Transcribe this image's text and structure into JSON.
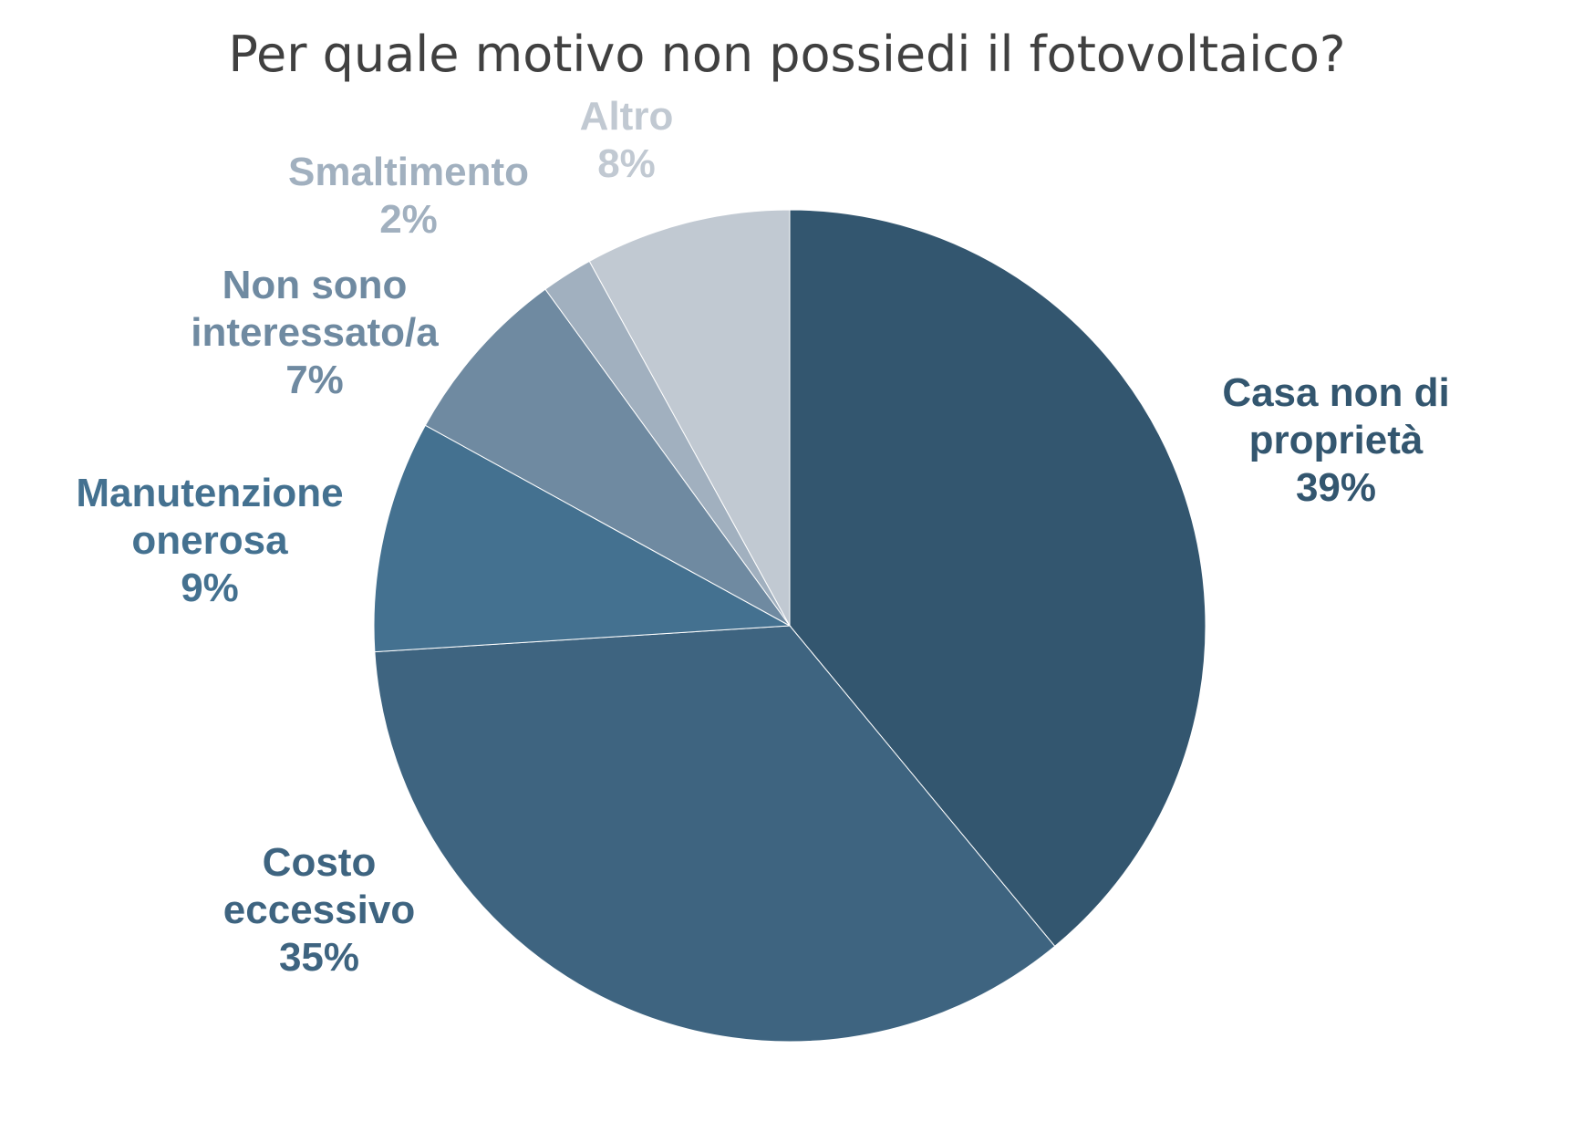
{
  "chart_data": {
    "type": "pie",
    "title": "Per quale motivo non possiedi il fotovoltaico?",
    "slices": [
      {
        "name": "Casa non di proprietà",
        "label_lines": [
          "Casa non di",
          "proprietà"
        ],
        "value": 39,
        "percent_label": "39%",
        "color": "#33566F",
        "label_color": "#33566F"
      },
      {
        "name": "Costo eccessivo",
        "label_lines": [
          "Costo",
          "eccessivo"
        ],
        "value": 35,
        "percent_label": "35%",
        "color": "#3E6480",
        "label_color": "#3E6480"
      },
      {
        "name": "Manutenzione onerosa",
        "label_lines": [
          "Manutenzione",
          "onerosa"
        ],
        "value": 9,
        "percent_label": "9%",
        "color": "#447190",
        "label_color": "#447190"
      },
      {
        "name": "Non sono interessato/a",
        "label_lines": [
          "Non sono",
          "interessato/a"
        ],
        "value": 7,
        "percent_label": "7%",
        "color": "#6F8AA1",
        "label_color": "#6F8AA1"
      },
      {
        "name": "Smaltimento",
        "label_lines": [
          "Smaltimento"
        ],
        "value": 2,
        "percent_label": "2%",
        "color": "#A1B0BF",
        "label_color": "#A1B0BF"
      },
      {
        "name": "Altro",
        "label_lines": [
          "Altro"
        ],
        "value": 8,
        "percent_label": "8%",
        "color": "#C1C9D2",
        "label_color": "#C1C9D2"
      }
    ],
    "start_angle": "12 o'clock",
    "direction": "clockwise",
    "legend": "none",
    "data_labels": "outside"
  }
}
